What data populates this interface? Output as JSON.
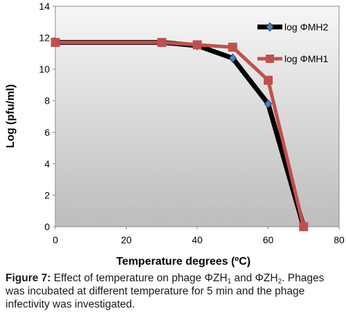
{
  "chart_data": {
    "type": "line",
    "ylabel": "Log (pfu/ml)",
    "xlabel": "Temperature degrees (ºC)",
    "xlim": [
      0,
      80
    ],
    "ylim": [
      0,
      14
    ],
    "x_ticks": [
      "0",
      "20",
      "40",
      "60",
      "80"
    ],
    "y_ticks": [
      "0",
      "2",
      "4",
      "6",
      "8",
      "10",
      "12",
      "14"
    ],
    "grid": false,
    "legend_position": "right",
    "series": [
      {
        "name": "log ΦMH2",
        "color": "#000000",
        "marker": "diamond",
        "x": [
          0,
          30,
          40,
          50,
          60,
          70
        ],
        "y": [
          11.7,
          11.7,
          11.5,
          10.7,
          7.8,
          0
        ]
      },
      {
        "name": "log ΦMH1",
        "color": "#c0504d",
        "marker": "square",
        "x": [
          0,
          30,
          40,
          50,
          60,
          70
        ],
        "y": [
          11.7,
          11.7,
          11.55,
          11.4,
          9.3,
          0
        ]
      }
    ]
  },
  "caption": {
    "label": "Figure 7:",
    "text_a": " Effect of temperature on phage ΦZH",
    "sub_a": "1",
    "text_b": " and ΦZH",
    "sub_b": "2",
    "text_c": ". Phages was incubated at different temperature for 5 min and the phage infectivity was investigated."
  }
}
